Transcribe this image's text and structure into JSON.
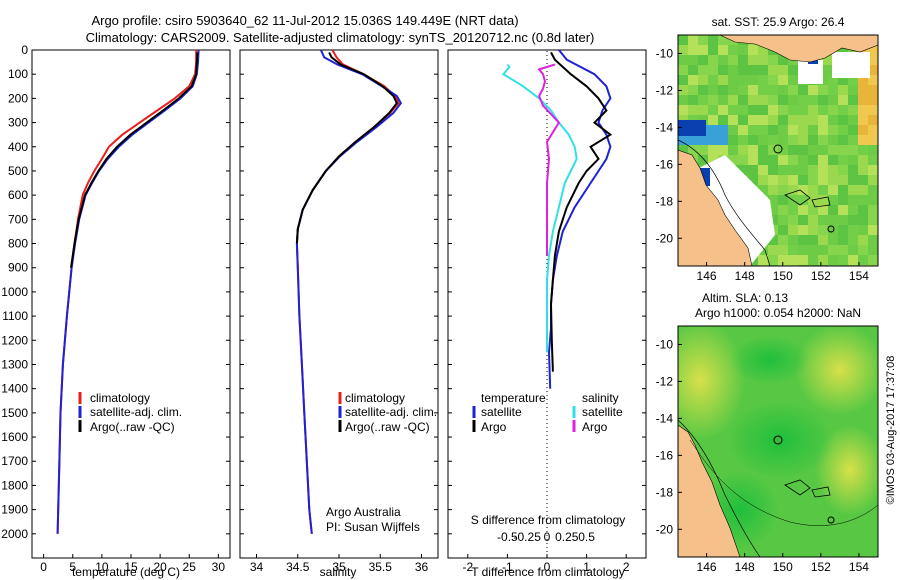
{
  "header": {
    "line1": "Argo profile: csiro 5903640_62 11-Jul-2012 15.036S 149.449E (NRT data)",
    "line2": "Climatology: CARS2009. Satellite-adjusted climatology: synTS_20120712.nc (0.8d later)"
  },
  "side_label": "©IMOS 03-Aug-2017 17:37:08",
  "colors": {
    "climatology": "#e8201a",
    "satellite": "#1e22d6",
    "argo": "#000000",
    "satellite_salinity": "#30e0e8",
    "argo_salinity": "#e020e0",
    "land": "#f5c08a",
    "cloud": "#ffffff"
  },
  "chart_data": [
    {
      "type": "line",
      "name": "temperature-profile",
      "xlabel": "temperature (deg C)",
      "ylabel": "",
      "xlim": [
        -2,
        32
      ],
      "ylim": [
        2100,
        0
      ],
      "xticks": [
        0,
        5,
        10,
        15,
        20,
        25,
        30
      ],
      "yticks": [
        0,
        100,
        200,
        300,
        400,
        500,
        600,
        700,
        800,
        900,
        1000,
        1100,
        1200,
        1300,
        1400,
        1500,
        1600,
        1700,
        1800,
        1900,
        2000
      ],
      "legend": [
        "climatology",
        "satellite-adj. clim.",
        "Argo(..raw -QC)"
      ],
      "legend_position": "lower-center",
      "series": [
        {
          "name": "climatology",
          "color_key": "climatology",
          "x": [
            26.2,
            26.2,
            26.0,
            25.0,
            22.5,
            19.5,
            16.5,
            13.5,
            11.2,
            10.0,
            8.7,
            7.6,
            6.7,
            5.9,
            5.3,
            4.8,
            4.0,
            3.3,
            2.9,
            2.7,
            2.5,
            2.4
          ],
          "y": [
            0,
            50,
            100,
            150,
            200,
            250,
            300,
            350,
            400,
            450,
            500,
            550,
            600,
            700,
            800,
            900,
            1100,
            1300,
            1500,
            1700,
            1900,
            2000
          ]
        },
        {
          "name": "satellite-adj. clim.",
          "color_key": "satellite",
          "x": [
            26.6,
            26.5,
            26.3,
            25.6,
            23.5,
            20.8,
            18.0,
            15.2,
            12.9,
            11.0,
            9.5,
            8.3,
            7.2,
            6.1,
            5.4,
            4.8,
            4.0,
            3.3,
            2.9,
            2.7,
            2.5,
            2.4
          ],
          "y": [
            0,
            50,
            100,
            150,
            200,
            250,
            300,
            350,
            400,
            450,
            500,
            550,
            600,
            700,
            800,
            900,
            1100,
            1300,
            1500,
            1700,
            1900,
            2000
          ]
        },
        {
          "name": "Argo(..raw -QC)",
          "color_key": "argo",
          "x": [
            26.4,
            26.3,
            26.2,
            25.4,
            23.2,
            20.5,
            17.7,
            14.9,
            12.6,
            10.8,
            9.4,
            8.2,
            7.1,
            6.0,
            5.3,
            4.7
          ],
          "y": [
            10,
            50,
            100,
            150,
            200,
            250,
            300,
            350,
            400,
            450,
            500,
            550,
            600,
            700,
            800,
            900
          ]
        }
      ]
    },
    {
      "type": "line",
      "name": "salinity-profile",
      "xlabel": "salinity",
      "ylabel": "",
      "xlim": [
        33.8,
        36.2
      ],
      "ylim": [
        2100,
        0
      ],
      "xticks": [
        34,
        34.5,
        35,
        35.5,
        36
      ],
      "xticklabels": [
        "34",
        "34.5",
        "35",
        "35.5",
        "36"
      ],
      "legend": [
        "climatology",
        "satellite-adj. clim.",
        "Argo(..raw -QC)"
      ],
      "legend_position": "lower-center",
      "annotations": [
        "Argo Australia",
        "PI: Susan Wijffels"
      ],
      "series": [
        {
          "name": "climatology",
          "color_key": "climatology",
          "x": [
            34.92,
            34.97,
            35.05,
            35.3,
            35.55,
            35.68,
            35.72,
            35.62,
            35.42,
            35.2,
            35.0,
            34.84,
            34.68,
            34.56,
            34.5,
            34.49,
            34.5,
            34.52,
            34.55,
            34.58,
            34.61,
            34.64,
            34.67
          ],
          "y": [
            0,
            30,
            60,
            100,
            150,
            190,
            220,
            260,
            320,
            380,
            440,
            500,
            580,
            660,
            740,
            800,
            900,
            1100,
            1300,
            1500,
            1700,
            1900,
            2000
          ]
        },
        {
          "name": "satellite-adj. clim.",
          "color_key": "satellite",
          "x": [
            34.78,
            34.82,
            34.98,
            35.28,
            35.52,
            35.7,
            35.75,
            35.66,
            35.45,
            35.22,
            35.01,
            34.84,
            34.68,
            34.56,
            34.5,
            34.49,
            34.5,
            34.52,
            34.55,
            34.58,
            34.61,
            34.64,
            34.67
          ],
          "y": [
            0,
            30,
            60,
            100,
            150,
            190,
            220,
            260,
            320,
            380,
            440,
            500,
            580,
            660,
            740,
            800,
            900,
            1100,
            1300,
            1500,
            1700,
            1900,
            2000
          ]
        },
        {
          "name": "Argo(..raw -QC)",
          "color_key": "argo",
          "x": [
            34.88,
            34.91,
            35.02,
            35.3,
            35.53,
            35.66,
            35.7,
            35.61,
            35.42,
            35.2,
            35.0,
            34.84,
            34.68,
            34.56,
            34.5,
            34.49
          ],
          "y": [
            10,
            30,
            60,
            100,
            150,
            190,
            220,
            260,
            320,
            380,
            440,
            500,
            580,
            660,
            740,
            800
          ]
        }
      ]
    },
    {
      "type": "line",
      "name": "difference-from-climatology",
      "xlabel": "T difference from climatology",
      "top_label": "S difference from climatology",
      "xlim": [
        -2.5,
        2.5
      ],
      "ylim": [
        2100,
        0
      ],
      "xticks": [
        -2,
        -1,
        0,
        1,
        2
      ],
      "xticklabels": [
        "-2",
        "-1",
        "0",
        "1",
        "2"
      ],
      "sticks": [
        -1,
        -0.5,
        0,
        0.5,
        1
      ],
      "sticklabels": [
        "-0.5",
        "-0.25",
        "0",
        "0.25",
        "0.5"
      ],
      "legend_headers": [
        "temperature",
        "salinity"
      ],
      "legend": [
        "satellite",
        "Argo",
        "satellite",
        "Argo"
      ],
      "legend_position": "lower-center",
      "series": [
        {
          "name": "temperature satellite",
          "color_key": "satellite",
          "x": [
            0.3,
            0.5,
            1.2,
            1.5,
            1.6,
            1.4,
            1.3,
            1.5,
            1.6,
            1.5,
            1.3,
            1.1,
            0.7,
            0.4,
            0.25,
            0.15,
            0.1,
            0.1,
            0.05,
            0.08
          ],
          "y": [
            0,
            40,
            100,
            150,
            200,
            250,
            300,
            350,
            400,
            450,
            500,
            550,
            650,
            750,
            850,
            950,
            1050,
            1150,
            1250,
            1400
          ]
        },
        {
          "name": "temperature Argo",
          "color_key": "argo",
          "x": [
            0.1,
            0.2,
            0.6,
            1.0,
            1.3,
            1.5,
            1.2,
            1.6,
            1.1,
            1.3,
            1.0,
            0.8,
            0.5,
            0.3,
            0.2,
            0.15,
            0.1,
            0.12,
            0.15
          ],
          "y": [
            10,
            40,
            100,
            150,
            200,
            250,
            300,
            350,
            400,
            450,
            500,
            550,
            650,
            750,
            850,
            950,
            1050,
            1200,
            1330
          ]
        },
        {
          "name": "salinity satellite",
          "color_key": "satellite_salinity",
          "x": [
            -1.0,
            -0.95,
            -1.1,
            -0.6,
            -0.2,
            0.1,
            0.3,
            0.55,
            0.7,
            0.75,
            0.6,
            0.45,
            0.3,
            0.15,
            0.05,
            0.0,
            0.0,
            0.0,
            0.0
          ],
          "y": [
            60,
            70,
            100,
            150,
            200,
            250,
            300,
            350,
            400,
            450,
            500,
            550,
            650,
            750,
            850,
            950,
            1050,
            1150,
            1250
          ]
        },
        {
          "name": "salinity Argo",
          "color_key": "argo_salinity",
          "x": [
            0.2,
            -0.2,
            -0.1,
            -0.05,
            -0.1,
            -0.2,
            -0.1,
            0.3,
            0.0,
            0.05,
            0.0,
            0.0,
            0.0
          ],
          "y": [
            60,
            80,
            100,
            130,
            160,
            190,
            230,
            300,
            380,
            450,
            550,
            700,
            850
          ]
        }
      ]
    },
    {
      "type": "heatmap",
      "name": "sst-map",
      "title": "sat. SST: 25.9  Argo: 26.4",
      "xlim": [
        144.5,
        155
      ],
      "ylim": [
        -21.5,
        -9
      ],
      "xticks": [
        146,
        148,
        150,
        152,
        154
      ],
      "yticks": [
        -10,
        -12,
        -14,
        -16,
        -18,
        -20
      ],
      "marker": {
        "lon": 149.449,
        "lat": -15.036
      }
    },
    {
      "type": "heatmap",
      "name": "sla-map",
      "title": "Altim. SLA: 0.13",
      "subtitle": "Argo h1000: 0.054  h2000: NaN",
      "xlim": [
        144.5,
        155
      ],
      "ylim": [
        -21.5,
        -9
      ],
      "xticks": [
        146,
        148,
        150,
        152,
        154
      ],
      "yticks": [
        -10,
        -12,
        -14,
        -16,
        -18,
        -20
      ],
      "marker": {
        "lon": 149.449,
        "lat": -15.036
      }
    }
  ]
}
